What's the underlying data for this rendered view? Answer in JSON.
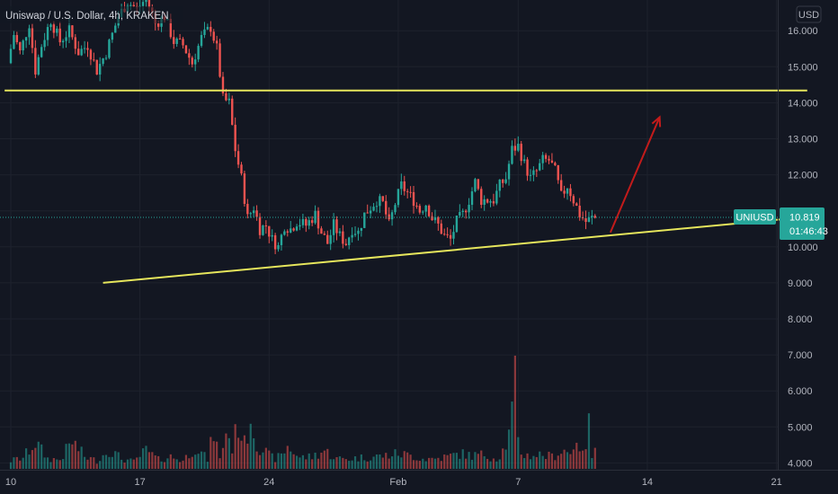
{
  "header": {
    "title": "Uniswap / U.S. Dollar, 4h, KRAKEN",
    "currency": "USD"
  },
  "chart_data": {
    "type": "candlestick",
    "symbol": "UNIUSD",
    "ylim": [
      3.9,
      16.55
    ],
    "y_ticks": [
      "16.000",
      "15.000",
      "14.000",
      "13.000",
      "12.000",
      "11.000",
      "10.000",
      "9.000",
      "8.000",
      "7.000",
      "6.000",
      "5.000",
      "4.000"
    ],
    "y_tick_values": [
      16,
      15,
      14,
      13,
      12,
      11,
      10,
      9,
      8,
      7,
      6,
      5,
      4
    ],
    "x_ticks": [
      {
        "label": "10",
        "bar": 0
      },
      {
        "label": "17",
        "bar": 42
      },
      {
        "label": "24",
        "bar": 84
      },
      {
        "label": "Feb",
        "bar": 126
      },
      {
        "label": "7",
        "bar": 165
      },
      {
        "label": "14",
        "bar": 207
      },
      {
        "label": "21",
        "bar": 249
      }
    ],
    "last_price": {
      "label": "UNIUSD",
      "value": "10.819",
      "countdown": "01:46:43"
    },
    "price_anchors": [
      [
        0,
        15.1
      ],
      [
        2,
        15.9
      ],
      [
        4,
        15.4
      ],
      [
        7,
        16.2
      ],
      [
        9,
        14.9
      ],
      [
        11,
        15.6
      ],
      [
        14,
        16.3
      ],
      [
        17,
        15.7
      ],
      [
        20,
        16.0
      ],
      [
        23,
        15.4
      ],
      [
        26,
        15.6
      ],
      [
        29,
        14.9
      ],
      [
        32,
        15.4
      ],
      [
        36,
        16.4
      ],
      [
        39,
        16.8
      ],
      [
        42,
        16.6
      ],
      [
        45,
        16.9
      ],
      [
        48,
        16.2
      ],
      [
        51,
        16.4
      ],
      [
        54,
        15.7
      ],
      [
        57,
        15.6
      ],
      [
        60,
        15.1
      ],
      [
        63,
        15.8
      ],
      [
        66,
        16.1
      ],
      [
        68,
        15.5
      ],
      [
        70,
        14.1
      ],
      [
        72,
        14.0
      ],
      [
        74,
        12.7
      ],
      [
        76,
        11.9
      ],
      [
        78,
        10.8
      ],
      [
        80,
        11.1
      ],
      [
        82,
        10.5
      ],
      [
        84,
        10.6
      ],
      [
        86,
        10.2
      ],
      [
        88,
        10.0
      ],
      [
        90,
        10.6
      ],
      [
        92,
        10.5
      ],
      [
        94,
        10.7
      ],
      [
        97,
        10.6
      ],
      [
        100,
        10.9
      ],
      [
        102,
        10.4
      ],
      [
        104,
        10.1
      ],
      [
        106,
        10.6
      ],
      [
        108,
        10.3
      ],
      [
        110,
        10.1
      ],
      [
        112,
        10.5
      ],
      [
        114,
        10.4
      ],
      [
        116,
        10.9
      ],
      [
        118,
        11.1
      ],
      [
        120,
        11.3
      ],
      [
        122,
        11.2
      ],
      [
        124,
        10.6
      ],
      [
        126,
        11.2
      ],
      [
        128,
        11.7
      ],
      [
        130,
        11.5
      ],
      [
        132,
        11.3
      ],
      [
        134,
        11.0
      ],
      [
        136,
        11.2
      ],
      [
        138,
        10.8
      ],
      [
        140,
        10.6
      ],
      [
        142,
        10.3
      ],
      [
        144,
        10.2
      ],
      [
        146,
        10.7
      ],
      [
        148,
        10.9
      ],
      [
        150,
        11.3
      ],
      [
        152,
        11.8
      ],
      [
        154,
        11.3
      ],
      [
        156,
        11.3
      ],
      [
        158,
        11.3
      ],
      [
        160,
        11.7
      ],
      [
        162,
        11.9
      ],
      [
        164,
        12.7
      ],
      [
        166,
        12.8
      ],
      [
        168,
        12.3
      ],
      [
        170,
        11.9
      ],
      [
        172,
        12.1
      ],
      [
        174,
        12.4
      ],
      [
        176,
        12.4
      ],
      [
        178,
        12.1
      ],
      [
        180,
        11.4
      ],
      [
        182,
        11.7
      ],
      [
        184,
        11.3
      ],
      [
        186,
        10.9
      ],
      [
        188,
        10.7
      ],
      [
        190,
        10.8
      ]
    ],
    "volume_anchors": [
      [
        0,
        0.8
      ],
      [
        4,
        1.1
      ],
      [
        8,
        2.6
      ],
      [
        12,
        1.0
      ],
      [
        16,
        0.9
      ],
      [
        20,
        2.7
      ],
      [
        24,
        1.2
      ],
      [
        28,
        0.8
      ],
      [
        32,
        1.9
      ],
      [
        36,
        1.0
      ],
      [
        40,
        0.7
      ],
      [
        44,
        1.8
      ],
      [
        48,
        0.9
      ],
      [
        52,
        1.2
      ],
      [
        56,
        0.8
      ],
      [
        60,
        2.2
      ],
      [
        64,
        0.9
      ],
      [
        66,
        3.7
      ],
      [
        68,
        0.9
      ],
      [
        70,
        3.8
      ],
      [
        72,
        2.1
      ],
      [
        74,
        4.5
      ],
      [
        76,
        2.4
      ],
      [
        78,
        5.2
      ],
      [
        80,
        2.5
      ],
      [
        82,
        1.9
      ],
      [
        84,
        1.3
      ],
      [
        86,
        1.0
      ],
      [
        88,
        1.3
      ],
      [
        90,
        2.2
      ],
      [
        94,
        1.1
      ],
      [
        98,
        1.2
      ],
      [
        102,
        1.8
      ],
      [
        106,
        1.0
      ],
      [
        110,
        1.0
      ],
      [
        114,
        1.1
      ],
      [
        118,
        1.2
      ],
      [
        122,
        1.3
      ],
      [
        126,
        1.5
      ],
      [
        130,
        1.3
      ],
      [
        134,
        1.0
      ],
      [
        138,
        1.0
      ],
      [
        142,
        1.2
      ],
      [
        146,
        1.5
      ],
      [
        150,
        1.3
      ],
      [
        154,
        1.4
      ],
      [
        158,
        1.0
      ],
      [
        160,
        1.8
      ],
      [
        162,
        3.2
      ],
      [
        163,
        5.6
      ],
      [
        164,
        10.0
      ],
      [
        165,
        2.6
      ],
      [
        166,
        1.6
      ],
      [
        168,
        1.3
      ],
      [
        172,
        1.4
      ],
      [
        176,
        1.2
      ],
      [
        180,
        1.9
      ],
      [
        182,
        1.4
      ],
      [
        184,
        3.3
      ],
      [
        186,
        1.3
      ],
      [
        188,
        4.2
      ],
      [
        189,
        1.2
      ],
      [
        190,
        1.6
      ]
    ],
    "lines": [
      {
        "name": "resistance",
        "color": "#e6e65c",
        "from": {
          "bar": -2,
          "price": 14.34
        },
        "to": {
          "bar": 259,
          "price": 14.34
        }
      },
      {
        "name": "rising-support",
        "color": "#e6e65c",
        "from": {
          "bar": 30,
          "price": 9.0
        },
        "to": {
          "bar": 259,
          "price": 10.83
        }
      }
    ],
    "arrow": {
      "color": "#c21b1b",
      "from": {
        "bar": 195,
        "price": 10.4
      },
      "to": {
        "bar": 211,
        "price": 13.6
      }
    }
  },
  "colors": {
    "background": "#131722",
    "up": "#26a69a",
    "down": "#ef5350",
    "grid": "#1e222d",
    "badge": "#26a69a",
    "axis_text": "#b2b5be"
  }
}
